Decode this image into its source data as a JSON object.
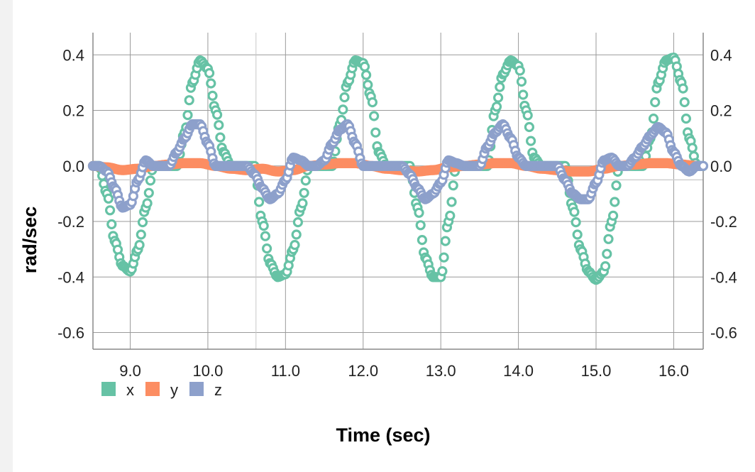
{
  "chart_data": {
    "type": "scatter",
    "title": "",
    "xlabel": "Time (sec)",
    "ylabel": "rad/sec",
    "xlim": [
      8.52,
      16.38
    ],
    "ylim": [
      -0.66,
      0.48
    ],
    "xticks": [
      9.0,
      10.0,
      11.0,
      12.0,
      13.0,
      14.0,
      15.0,
      16.0
    ],
    "xtick_labels": [
      "9.0",
      "10.0",
      "11.0",
      "12.0",
      "13.0",
      "14.0",
      "15.0",
      "16.0"
    ],
    "yticks": [
      0.4,
      0.2,
      0.0,
      -0.2,
      -0.4,
      -0.6
    ],
    "ytick_labels": [
      "0.4",
      "0.2",
      "0.0",
      "-0.2",
      "-0.4",
      "-0.6"
    ],
    "grid": true,
    "legend_position": "bottom-left",
    "series": [
      {
        "name": "x",
        "color": "#66c2a5",
        "x": [
          8.52,
          8.6,
          8.7,
          8.8,
          8.9,
          9.0,
          9.1,
          9.2,
          9.3,
          9.4,
          9.5,
          9.6,
          9.7,
          9.8,
          9.9,
          10.0,
          10.1,
          10.2,
          10.3,
          10.4,
          10.5,
          10.6,
          10.7,
          10.8,
          10.9,
          11.0,
          11.1,
          11.2,
          11.3,
          11.4,
          11.5,
          11.6,
          11.7,
          11.8,
          11.9,
          12.0,
          12.1,
          12.2,
          12.3,
          12.4,
          12.5,
          12.6,
          12.7,
          12.8,
          12.9,
          13.0,
          13.1,
          13.2,
          13.3,
          13.4,
          13.5,
          13.6,
          13.7,
          13.8,
          13.9,
          14.0,
          14.1,
          14.2,
          14.3,
          14.4,
          14.5,
          14.6,
          14.7,
          14.8,
          14.9,
          15.0,
          15.1,
          15.2,
          15.3,
          15.4,
          15.5,
          15.6,
          15.7,
          15.8,
          15.9,
          16.0,
          16.1,
          16.2,
          16.3,
          16.38
        ],
        "y": [
          0.0,
          0.0,
          -0.1,
          -0.27,
          -0.36,
          -0.38,
          -0.3,
          -0.15,
          0.0,
          0.0,
          0.0,
          0.0,
          0.12,
          0.3,
          0.38,
          0.35,
          0.2,
          0.05,
          0.0,
          0.0,
          0.0,
          0.0,
          -0.2,
          -0.35,
          -0.4,
          -0.39,
          -0.3,
          -0.15,
          0.0,
          0.0,
          0.0,
          0.0,
          0.15,
          0.3,
          0.38,
          0.37,
          0.25,
          0.05,
          0.0,
          0.0,
          0.0,
          0.0,
          -0.15,
          -0.33,
          -0.4,
          -0.4,
          -0.2,
          0.0,
          0.0,
          0.0,
          0.0,
          0.0,
          0.2,
          0.33,
          0.38,
          0.36,
          0.2,
          0.03,
          0.0,
          0.0,
          0.0,
          0.0,
          -0.15,
          -0.3,
          -0.38,
          -0.41,
          -0.38,
          -0.2,
          0.0,
          0.0,
          0.0,
          0.0,
          0.1,
          0.3,
          0.38,
          0.39,
          0.3,
          0.1,
          0.0,
          0.0
        ]
      },
      {
        "name": "y",
        "color": "#fc8d62",
        "x": [
          8.52,
          8.7,
          8.9,
          9.1,
          9.3,
          9.5,
          9.7,
          9.9,
          10.1,
          10.3,
          10.5,
          10.7,
          10.9,
          11.1,
          11.3,
          11.5,
          11.7,
          11.9,
          12.1,
          12.3,
          12.5,
          12.7,
          12.9,
          13.1,
          13.3,
          13.5,
          13.7,
          13.9,
          14.1,
          14.3,
          14.5,
          14.7,
          14.9,
          15.1,
          15.3,
          15.5,
          15.7,
          15.9,
          16.1,
          16.3
        ],
        "y": [
          0.0,
          -0.005,
          -0.015,
          -0.01,
          0.0,
          0.005,
          0.01,
          0.01,
          0.0,
          -0.01,
          -0.015,
          -0.01,
          -0.02,
          -0.015,
          0.0,
          0.005,
          0.01,
          0.01,
          0.0,
          -0.01,
          -0.015,
          -0.02,
          -0.015,
          -0.005,
          0.0,
          0.005,
          0.01,
          0.01,
          0.0,
          -0.01,
          -0.015,
          -0.02,
          -0.02,
          -0.01,
          0.0,
          0.005,
          0.01,
          0.01,
          0.005,
          0.0
        ]
      },
      {
        "name": "z",
        "color": "#8da0cb",
        "x": [
          8.52,
          8.6,
          8.7,
          8.8,
          8.9,
          9.0,
          9.1,
          9.2,
          9.3,
          9.4,
          9.5,
          9.6,
          9.7,
          9.8,
          9.9,
          10.0,
          10.1,
          10.2,
          10.3,
          10.4,
          10.5,
          10.6,
          10.7,
          10.8,
          10.9,
          11.0,
          11.1,
          11.2,
          11.3,
          11.4,
          11.5,
          11.6,
          11.7,
          11.8,
          11.9,
          12.0,
          12.1,
          12.2,
          12.3,
          12.4,
          12.5,
          12.6,
          12.7,
          12.8,
          12.9,
          13.0,
          13.1,
          13.2,
          13.3,
          13.4,
          13.5,
          13.6,
          13.7,
          13.8,
          13.9,
          14.0,
          14.1,
          14.2,
          14.3,
          14.4,
          14.5,
          14.6,
          14.7,
          14.8,
          14.9,
          15.0,
          15.1,
          15.2,
          15.3,
          15.4,
          15.5,
          15.6,
          15.7,
          15.8,
          15.9,
          16.0,
          16.1,
          16.2,
          16.3,
          16.38
        ],
        "y": [
          0.0,
          0.0,
          -0.02,
          -0.08,
          -0.15,
          -0.14,
          -0.05,
          0.02,
          0.0,
          0.0,
          0.0,
          0.05,
          0.1,
          0.15,
          0.15,
          0.08,
          0.0,
          0.0,
          0.0,
          0.0,
          0.0,
          -0.03,
          -0.08,
          -0.12,
          -0.1,
          -0.05,
          0.03,
          0.02,
          0.0,
          0.0,
          0.02,
          0.08,
          0.13,
          0.15,
          0.08,
          0.0,
          0.0,
          0.0,
          0.0,
          0.0,
          0.0,
          -0.03,
          -0.08,
          -0.12,
          -0.1,
          -0.06,
          0.02,
          0.01,
          0.0,
          0.0,
          0.0,
          0.07,
          0.12,
          0.15,
          0.1,
          0.03,
          0.0,
          0.0,
          0.0,
          0.0,
          0.0,
          -0.05,
          -0.1,
          -0.12,
          -0.12,
          -0.06,
          0.02,
          0.03,
          0.0,
          0.0,
          0.03,
          0.07,
          0.11,
          0.14,
          0.12,
          0.05,
          0.0,
          -0.02,
          0.0,
          0.0
        ]
      }
    ]
  }
}
